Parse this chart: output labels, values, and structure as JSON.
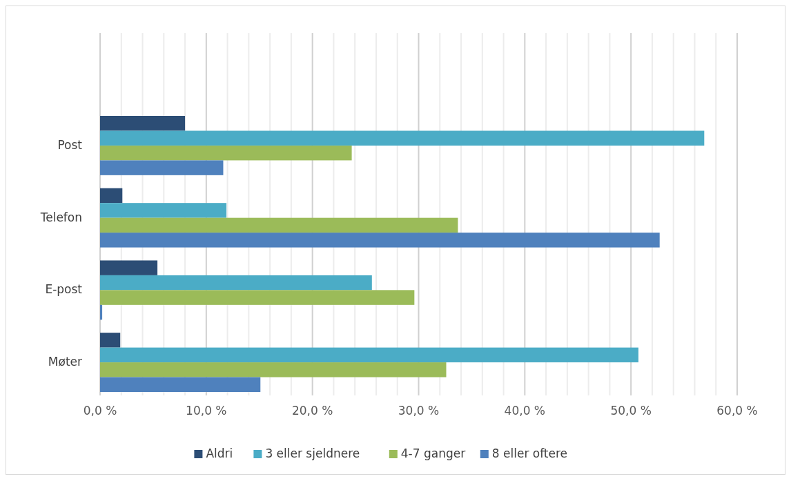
{
  "chart_data": {
    "type": "bar",
    "orientation": "horizontal",
    "categories": [
      "Post",
      "Telefon",
      "E-post",
      "Møter"
    ],
    "series": [
      {
        "name": "Aldri",
        "color": "#2c4d75",
        "values": [
          8.0,
          2.1,
          5.4,
          1.9
        ]
      },
      {
        "name": "3 eller sjeldnere",
        "color": "#4bacc6",
        "values": [
          56.9,
          11.9,
          25.6,
          50.7
        ]
      },
      {
        "name": "4-7 ganger",
        "color": "#9bbb59",
        "values": [
          23.7,
          33.7,
          29.6,
          32.6
        ]
      },
      {
        "name": "8 eller oftere",
        "color": "#4f81bd",
        "values": [
          11.6,
          52.7,
          0.2,
          15.1
        ]
      }
    ],
    "xlim": [
      0,
      60
    ],
    "xticks": [
      {
        "value": 0,
        "label": "0,0 %"
      },
      {
        "value": 2,
        "label": null
      },
      {
        "value": 4,
        "label": null
      },
      {
        "value": 6,
        "label": null
      },
      {
        "value": 8,
        "label": null
      },
      {
        "value": 10,
        "label": "10,0 %"
      },
      {
        "value": 12,
        "label": null
      },
      {
        "value": 14,
        "label": null
      },
      {
        "value": 16,
        "label": null
      },
      {
        "value": 18,
        "label": null
      },
      {
        "value": 20,
        "label": "20,0 %"
      },
      {
        "value": 22,
        "label": null
      },
      {
        "value": 24,
        "label": null
      },
      {
        "value": 26,
        "label": null
      },
      {
        "value": 28,
        "label": null
      },
      {
        "value": 30,
        "label": "30,0 %"
      },
      {
        "value": 32,
        "label": null
      },
      {
        "value": 34,
        "label": null
      },
      {
        "value": 36,
        "label": null
      },
      {
        "value": 38,
        "label": null
      },
      {
        "value": 40,
        "label": "40,0 %"
      },
      {
        "value": 42,
        "label": null
      },
      {
        "value": 44,
        "label": null
      },
      {
        "value": 46,
        "label": null
      },
      {
        "value": 48,
        "label": null
      },
      {
        "value": 50,
        "label": "50,0 %"
      },
      {
        "value": 52,
        "label": null
      },
      {
        "value": 54,
        "label": null
      },
      {
        "value": 56,
        "label": null
      },
      {
        "value": 58,
        "label": null
      },
      {
        "value": 60,
        "label": "60,0 %"
      }
    ],
    "grid": "x",
    "legend": "bottom"
  }
}
